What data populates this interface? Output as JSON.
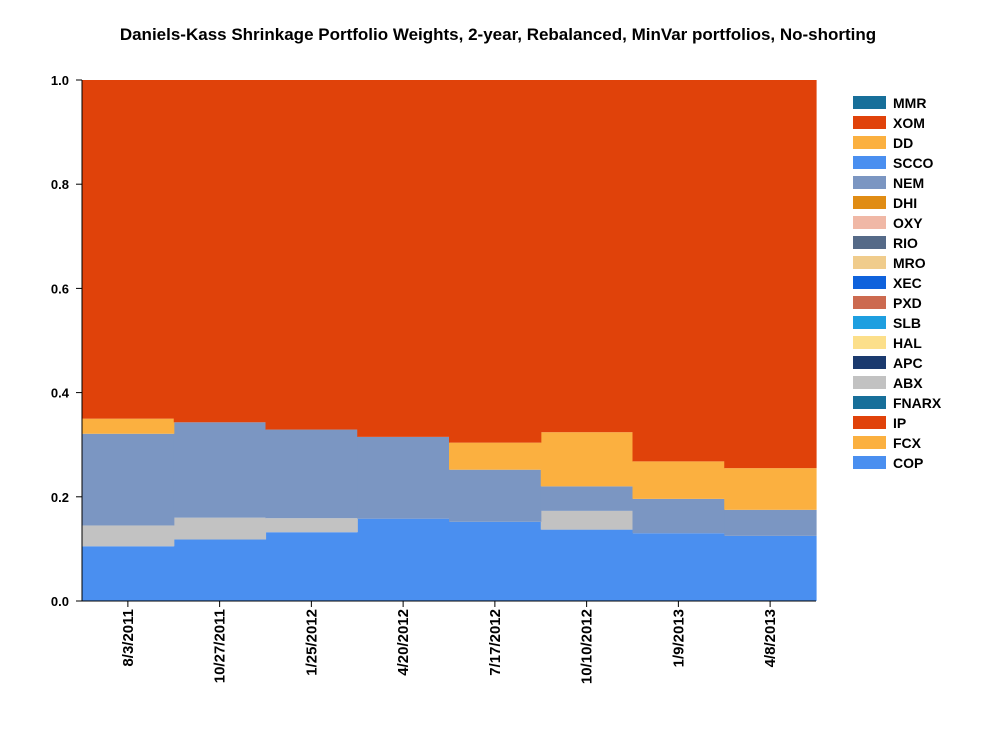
{
  "chart_data": {
    "type": "area",
    "stacked": true,
    "step": true,
    "title": "Daniels-Kass Shrinkage Portfolio Weights, 2-year, Rebalanced, MinVar portfolios, No-shorting",
    "xlabel": "",
    "ylabel": "",
    "ylim": [
      0,
      1
    ],
    "yticks": [
      "0.0",
      "0.2",
      "0.4",
      "0.6",
      "0.8",
      "1.0"
    ],
    "categories": [
      "8/3/2011",
      "10/27/2011",
      "1/25/2012",
      "4/20/2012",
      "7/17/2012",
      "10/10/2012",
      "1/9/2013",
      "4/8/2013"
    ],
    "legend_position": "right",
    "legend": [
      "MMR",
      "XOM",
      "DD",
      "SCCO",
      "NEM",
      "DHI",
      "OXY",
      "RIO",
      "MRO",
      "XEC",
      "PXD",
      "SLB",
      "HAL",
      "APC",
      "ABX",
      "FNARX",
      "IP",
      "FCX",
      "COP"
    ],
    "series": [
      {
        "name": "COP",
        "color": "#4a8ff0",
        "values": [
          0.105,
          0.118,
          0.132,
          0.158,
          0.152,
          0.137,
          0.13,
          0.125
        ]
      },
      {
        "name": "ABX",
        "color": "#c2c2c2",
        "values": [
          0.04,
          0.042,
          0.027,
          0.0,
          0.0,
          0.036,
          0.0,
          0.0
        ]
      },
      {
        "name": "NEM",
        "color": "#7b96c2",
        "values": [
          0.176,
          0.183,
          0.17,
          0.157,
          0.1,
          0.047,
          0.066,
          0.05
        ]
      },
      {
        "name": "DD",
        "color": "#fbb040",
        "values": [
          0.029,
          0.0,
          0.0,
          0.0,
          0.052,
          0.104,
          0.072,
          0.08
        ]
      },
      {
        "name": "XOM",
        "color": "#e0420a",
        "values": [
          0.65,
          0.657,
          0.671,
          0.685,
          0.696,
          0.676,
          0.732,
          0.745
        ]
      }
    ],
    "legend_colors": {
      "MMR": "#176f9a",
      "XOM": "#e0420a",
      "DD": "#fbb040",
      "SCCO": "#4a8ff0",
      "NEM": "#7b96c2",
      "DHI": "#e08c14",
      "OXY": "#f0b8a6",
      "RIO": "#556a88",
      "MRO": "#f0cc8c",
      "XEC": "#0f62dc",
      "PXD": "#cc6a50",
      "SLB": "#1e9fe0",
      "HAL": "#fcdf8a",
      "APC": "#1b3a6e",
      "ABX": "#c2c2c2",
      "FNARX": "#176f9a",
      "IP": "#e0420a",
      "FCX": "#fbb040",
      "COP": "#4a8ff0"
    }
  }
}
